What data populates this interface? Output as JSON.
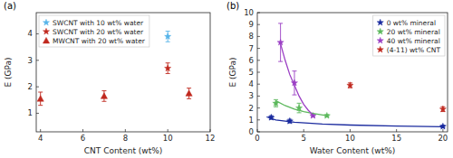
{
  "chart_data": [
    {
      "type": "scatter",
      "title": "(a)",
      "xlabel": "CNT Content (wt%)",
      "ylabel": "E (GPa)",
      "xlim": [
        3.8,
        12
      ],
      "xticks": [
        4,
        6,
        8,
        10,
        12
      ],
      "ylim": [
        0.3,
        4.8
      ],
      "yticks": [
        1,
        2,
        3,
        4
      ],
      "legend": "upper left",
      "series": [
        {
          "name": "SWCNT with 10 wt% water",
          "color": "#56b4e9",
          "marker": "star",
          "x": [
            10
          ],
          "values": [
            3.9
          ],
          "errors": [
            0.2
          ]
        },
        {
          "name": "SWCNT with 20 wt% water",
          "color": "#c0281e",
          "marker": "star",
          "x": [
            10
          ],
          "values": [
            2.7
          ],
          "errors": [
            0.2
          ]
        },
        {
          "name": "MWCNT with 20 wt% water",
          "color": "#c0281e",
          "marker": "triangle",
          "x": [
            4,
            7,
            11
          ],
          "values": [
            1.55,
            1.65,
            1.75
          ],
          "errors": [
            0.25,
            0.2,
            0.2
          ]
        }
      ]
    },
    {
      "type": "scatter",
      "title": "(b)",
      "xlabel": "Water Content (wt%)",
      "ylabel": "E (GPa)",
      "xlim": [
        0,
        20.5
      ],
      "xticks": [
        0,
        5,
        10,
        15,
        20
      ],
      "ylim": [
        0,
        10
      ],
      "yticks": [
        0,
        1,
        2,
        3,
        4,
        5,
        6,
        7,
        8,
        9,
        10
      ],
      "legend": "upper right",
      "series": [
        {
          "name": "0 wt% mineral",
          "color": "#1a2a9e",
          "marker": "star",
          "x": [
            1.5,
            3.5,
            20
          ],
          "values": [
            1.2,
            0.9,
            0.45
          ],
          "errors": [
            0.15,
            0.15,
            0.1
          ]
        },
        {
          "name": "20 wt% mineral",
          "color": "#5cb85c",
          "marker": "star",
          "x": [
            2,
            4.5,
            7.5
          ],
          "values": [
            2.4,
            2.0,
            1.35
          ],
          "errors": [
            0.3,
            0.4,
            0.1
          ]
        },
        {
          "name": "40 wt% mineral",
          "color": "#9b3fc4",
          "marker": "star",
          "x": [
            2.5,
            4,
            6
          ],
          "values": [
            7.5,
            4.1,
            1.35
          ],
          "errors": [
            1.6,
            1.0,
            0.1
          ]
        },
        {
          "name": "(4-11) wt% CNT",
          "color": "#c0281e",
          "marker": "star",
          "x": [
            10,
            20
          ],
          "values": [
            3.9,
            1.9
          ],
          "errors": [
            0.2,
            0.2
          ]
        },
        {
          "type": "line",
          "color": "#1a2a9e",
          "x": [
            1,
            2,
            4,
            7,
            10,
            15,
            20
          ],
          "values": [
            1.25,
            1.0,
            0.8,
            0.65,
            0.57,
            0.48,
            0.42
          ]
        },
        {
          "type": "line",
          "color": "#5cb85c",
          "x": [
            2,
            3,
            4,
            5,
            6,
            7.5
          ],
          "values": [
            2.6,
            2.2,
            1.9,
            1.7,
            1.55,
            1.35
          ]
        },
        {
          "type": "line",
          "color": "#9b3fc4",
          "x": [
            2.5,
            3,
            3.5,
            4,
            4.5,
            5,
            5.5,
            6
          ],
          "values": [
            7.4,
            6.0,
            4.8,
            3.9,
            3.0,
            2.3,
            1.8,
            1.4
          ]
        }
      ]
    }
  ]
}
